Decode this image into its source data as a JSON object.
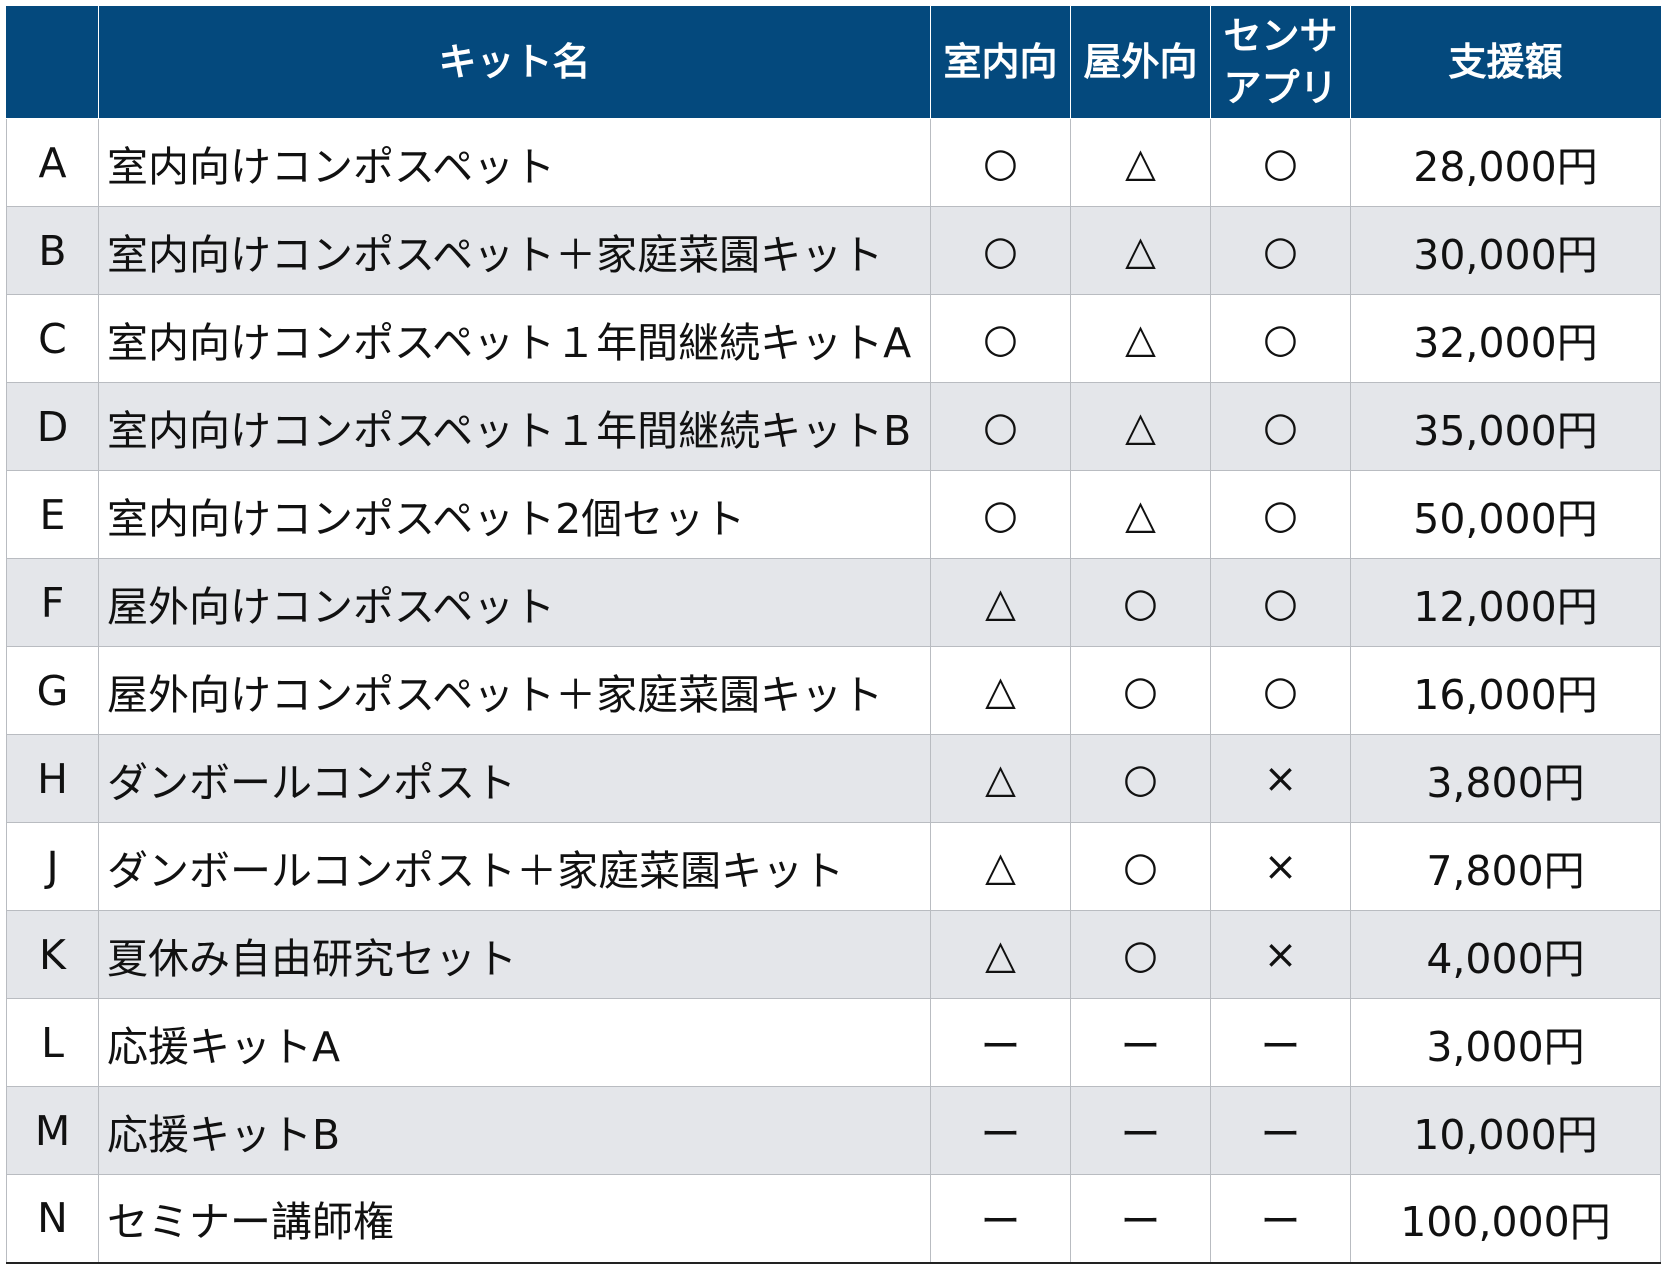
{
  "header": {
    "id": "",
    "name": "キット名",
    "indoor": "室内向",
    "outdoor": "屋外向",
    "sensor_line1": "センサ",
    "sensor_line2": "アプリ",
    "price": "支援額"
  },
  "colors": {
    "header_bg": "#04497d",
    "header_text": "#ffffff",
    "row_alt_bg": "#e4e6ea",
    "row_bg": "#ffffff"
  },
  "rows": [
    {
      "id": "A",
      "name": "室内向けコンポスペット",
      "indoor": "○",
      "outdoor": "△",
      "sensor": "○",
      "price": "28,000円"
    },
    {
      "id": "B",
      "name": "室内向けコンポスペット＋家庭菜園キット",
      "indoor": "○",
      "outdoor": "△",
      "sensor": "○",
      "price": "30,000円"
    },
    {
      "id": "C",
      "name": "室内向けコンポスペット１年間継続キットA",
      "indoor": "○",
      "outdoor": "△",
      "sensor": "○",
      "price": "32,000円"
    },
    {
      "id": "D",
      "name": "室内向けコンポスペット１年間継続キットB",
      "indoor": "○",
      "outdoor": "△",
      "sensor": "○",
      "price": "35,000円"
    },
    {
      "id": "E",
      "name": "室内向けコンポスペット2個セット",
      "indoor": "○",
      "outdoor": "△",
      "sensor": "○",
      "price": "50,000円"
    },
    {
      "id": "F",
      "name": "屋外向けコンポスペット",
      "indoor": "△",
      "outdoor": "○",
      "sensor": "○",
      "price": "12,000円"
    },
    {
      "id": "G",
      "name": "屋外向けコンポスペット＋家庭菜園キット",
      "indoor": "△",
      "outdoor": "○",
      "sensor": "○",
      "price": "16,000円"
    },
    {
      "id": "H",
      "name": "ダンボールコンポスト",
      "indoor": "△",
      "outdoor": "○",
      "sensor": "×",
      "price": "3,800円"
    },
    {
      "id": "J",
      "name": "ダンボールコンポスト＋家庭菜園キット",
      "indoor": "△",
      "outdoor": "○",
      "sensor": "×",
      "price": "7,800円"
    },
    {
      "id": "K",
      "name": "夏休み自由研究セット",
      "indoor": "△",
      "outdoor": "○",
      "sensor": "×",
      "price": "4,000円"
    },
    {
      "id": "L",
      "name": "応援キットA",
      "indoor": "ー",
      "outdoor": "ー",
      "sensor": "ー",
      "price": "3,000円"
    },
    {
      "id": "M",
      "name": "応援キットB",
      "indoor": "ー",
      "outdoor": "ー",
      "sensor": "ー",
      "price": "10,000円"
    },
    {
      "id": "N",
      "name": "セミナー講師権",
      "indoor": "ー",
      "outdoor": "ー",
      "sensor": "ー",
      "price": "100,000円"
    }
  ]
}
